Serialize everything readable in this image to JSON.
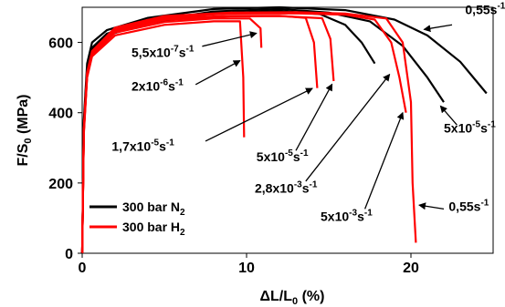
{
  "chart_data": {
    "type": "line",
    "xlim": [
      0,
      25
    ],
    "ylim": [
      0,
      700
    ],
    "x_ticks": [
      0,
      10,
      20
    ],
    "y_ticks": [
      0,
      200,
      400,
      600
    ],
    "tick_labels_x": [
      "0",
      "10",
      "20"
    ],
    "tick_labels_y": [
      "0",
      "200",
      "400",
      "600"
    ],
    "xlabel": {
      "base": "ΔL/L",
      "sub": "0",
      "tail": " (%)"
    },
    "ylabel": {
      "base": "F/S",
      "sub": "0",
      "tail": " (MPa)"
    },
    "legend": {
      "placement": "bottom-left",
      "entries": [
        {
          "pre": "300 bar N",
          "sub": "2",
          "color": "#000000"
        },
        {
          "pre": "300 bar H",
          "sub": "2",
          "color": "#ff0000"
        }
      ]
    },
    "colors": {
      "N2": "#000000",
      "H2": "#ff0000"
    },
    "series": [
      {
        "group": "N2",
        "x": [
          0,
          0.1,
          0.3,
          0.6,
          1.5,
          4,
          8,
          12,
          16,
          19,
          21,
          23,
          24.6
        ],
        "y": [
          0,
          380,
          540,
          600,
          635,
          670,
          695,
          700,
          692,
          665,
          620,
          545,
          455
        ]
      },
      {
        "group": "N2",
        "x": [
          0,
          0.1,
          0.3,
          0.6,
          1.5,
          4,
          8,
          12,
          15,
          17.5,
          19.5,
          21,
          22
        ],
        "y": [
          0,
          370,
          525,
          585,
          625,
          660,
          688,
          695,
          685,
          660,
          590,
          500,
          430
        ]
      },
      {
        "group": "N2",
        "x": [
          0,
          0.1,
          0.3,
          0.6,
          1.5,
          4,
          8,
          12,
          14.5,
          16,
          17,
          17.8
        ],
        "y": [
          0,
          360,
          520,
          580,
          620,
          655,
          683,
          690,
          680,
          650,
          600,
          540
        ]
      },
      {
        "group": "H2",
        "x": [
          0,
          0.1,
          0.3,
          0.6,
          2,
          5,
          8,
          9.6,
          9.8,
          9.85
        ],
        "y": [
          0,
          340,
          500,
          560,
          620,
          650,
          660,
          660,
          500,
          330
        ]
      },
      {
        "group": "H2",
        "x": [
          0,
          0.1,
          0.3,
          0.6,
          2,
          5,
          8,
          10.2,
          10.85,
          10.9
        ],
        "y": [
          0,
          345,
          505,
          565,
          628,
          658,
          668,
          668,
          640,
          585
        ]
      },
      {
        "group": "H2",
        "x": [
          0,
          0.1,
          0.3,
          0.6,
          2,
          5,
          9,
          12,
          13.6,
          14.1,
          14.3
        ],
        "y": [
          0,
          350,
          510,
          570,
          635,
          668,
          676,
          676,
          670,
          600,
          470
        ]
      },
      {
        "group": "H2",
        "x": [
          0,
          0.1,
          0.3,
          0.6,
          2,
          5,
          9,
          12,
          14.6,
          15.1,
          15.3
        ],
        "y": [
          0,
          348,
          508,
          568,
          632,
          664,
          674,
          675,
          669,
          610,
          490
        ]
      },
      {
        "group": "H2",
        "x": [
          0,
          0.1,
          0.3,
          0.6,
          2,
          5,
          9,
          13,
          16,
          17.8,
          18.8,
          19.3,
          19.7
        ],
        "y": [
          0,
          352,
          512,
          572,
          640,
          672,
          682,
          683,
          679,
          665,
          600,
          500,
          400
        ]
      },
      {
        "group": "H2",
        "x": [
          0,
          0.1,
          0.3,
          0.6,
          2,
          5,
          9,
          13,
          16,
          18.5,
          19.5,
          20,
          20.1,
          20.3
        ],
        "y": [
          0,
          355,
          515,
          575,
          642,
          675,
          685,
          686,
          682,
          668,
          600,
          430,
          200,
          30
        ]
      }
    ],
    "annotations": [
      {
        "parts": [
          "0,55s",
          "-1"
        ],
        "tx": 23.3,
        "ty": 680,
        "ax": 22.5,
        "ay": 650,
        "bx": 20.8,
        "by": 637
      },
      {
        "parts": [
          "5,5x10",
          "-7",
          "s",
          "-1"
        ],
        "tx": 3.0,
        "ty": 559,
        "ax": 7.3,
        "ay": 589,
        "bx": 10.6,
        "by": 626
      },
      {
        "parts": [
          "2x10",
          "-6",
          "s",
          "-1"
        ],
        "tx": 3.0,
        "ty": 463,
        "ax": 6.9,
        "ay": 480,
        "bx": 9.6,
        "by": 548
      },
      {
        "parts": [
          "1,7x10",
          "-5",
          "s",
          "-1"
        ],
        "tx": 1.8,
        "ty": 292,
        "ax": 7.5,
        "ay": 319,
        "bx": 14.0,
        "by": 469
      },
      {
        "parts": [
          "5x10",
          "-5",
          "s",
          "-1"
        ],
        "tx": 10.6,
        "ty": 262,
        "ax": 13.0,
        "ay": 292,
        "bx": 15.2,
        "by": 481
      },
      {
        "parts": [
          "2,8x10",
          "-3",
          "s",
          "-1"
        ],
        "tx": 10.5,
        "ty": 172,
        "ax": 13.6,
        "ay": 205,
        "bx": 18.7,
        "by": 509
      },
      {
        "parts": [
          "5x10",
          "-3",
          "s",
          "-1"
        ],
        "tx": 14.5,
        "ty": 92,
        "ax": 17.2,
        "ay": 126,
        "bx": 19.5,
        "by": 400
      },
      {
        "parts": [
          "5x10",
          "-5",
          "s",
          "-1"
        ],
        "tx": 22.0,
        "ty": 343,
        "ax": 22.8,
        "ay": 365,
        "bx": 21.8,
        "by": 419
      },
      {
        "parts": [
          "0,55s",
          "-1"
        ],
        "tx": 22.3,
        "ty": 121,
        "ax": 22.0,
        "ay": 126,
        "bx": 20.5,
        "by": 137
      }
    ]
  }
}
